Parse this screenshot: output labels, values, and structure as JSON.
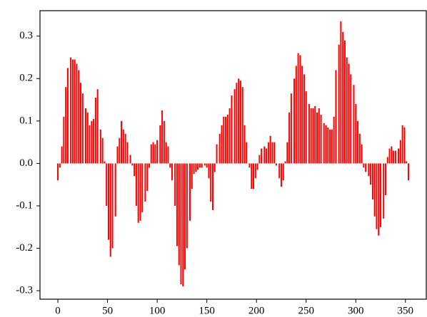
{
  "chart_data": {
    "type": "bar",
    "color": "#ff0000",
    "x": [
      0,
      2,
      4,
      6,
      8,
      10,
      13,
      15,
      17,
      19,
      21,
      23,
      25,
      28,
      30,
      32,
      34,
      36,
      38,
      40,
      43,
      45,
      47,
      49,
      51,
      53,
      55,
      58,
      60,
      62,
      64,
      66,
      68,
      70,
      73,
      75,
      77,
      79,
      81,
      83,
      85,
      88,
      90,
      92,
      94,
      96,
      98,
      100,
      103,
      105,
      107,
      109,
      111,
      113,
      115,
      118,
      120,
      122,
      124,
      126,
      128,
      130,
      133,
      135,
      137,
      139,
      141,
      143,
      145,
      148,
      150,
      152,
      154,
      156,
      158,
      160,
      163,
      165,
      167,
      169,
      171,
      173,
      175,
      178,
      180,
      182,
      184,
      186,
      188,
      190,
      193,
      195,
      197,
      199,
      201,
      203,
      205,
      208,
      210,
      212,
      214,
      216,
      218,
      220,
      223,
      225,
      227,
      229,
      231,
      233,
      235,
      238,
      240,
      242,
      244,
      246,
      248,
      250,
      253,
      255,
      257,
      259,
      261,
      263,
      265,
      268,
      270,
      272,
      274,
      276,
      278,
      280,
      283,
      285,
      287,
      289,
      291,
      293,
      295,
      298,
      300,
      302,
      304,
      306,
      308,
      310,
      313,
      315,
      317,
      319,
      321,
      323,
      325,
      328,
      330,
      332,
      334,
      336,
      338,
      340,
      343,
      345,
      347,
      349,
      351,
      353
    ],
    "values": [
      -0.04,
      -0.01,
      0.04,
      0.11,
      0.18,
      0.225,
      0.25,
      0.245,
      0.245,
      0.235,
      0.22,
      0.19,
      0.165,
      0.13,
      0.12,
      0.09,
      0.1,
      0.105,
      0.155,
      0.175,
      0.08,
      0.06,
      0.005,
      -0.1,
      -0.18,
      -0.22,
      -0.2,
      -0.125,
      0.04,
      0.06,
      0.1,
      0.08,
      0.07,
      0.05,
      0.02,
      -0.005,
      -0.03,
      -0.1,
      -0.14,
      -0.135,
      -0.115,
      -0.09,
      -0.065,
      -0.01,
      0.045,
      0.05,
      0.045,
      0.055,
      0.09,
      0.125,
      0.1,
      0.05,
      0.04,
      -0.01,
      -0.04,
      -0.1,
      -0.195,
      -0.24,
      -0.285,
      -0.29,
      -0.25,
      -0.2,
      -0.135,
      -0.06,
      -0.025,
      -0.02,
      -0.015,
      -0.01,
      -0.01,
      -0.005,
      -0.01,
      -0.035,
      -0.09,
      -0.11,
      -0.02,
      0.045,
      0.07,
      0.09,
      0.11,
      0.11,
      0.115,
      0.13,
      0.16,
      0.175,
      0.19,
      0.2,
      0.195,
      0.18,
      0.09,
      0.05,
      -0.01,
      -0.06,
      -0.06,
      -0.035,
      -0.015,
      0.02,
      0.035,
      0.04,
      0.035,
      0.05,
      0.065,
      0.05,
      0.05,
      -0.005,
      -0.035,
      -0.055,
      -0.04,
      0.005,
      0.05,
      0.12,
      0.165,
      0.2,
      0.23,
      0.26,
      0.255,
      0.23,
      0.21,
      0.17,
      0.14,
      0.13,
      0.13,
      0.135,
      0.12,
      0.13,
      0.115,
      0.095,
      0.09,
      0.085,
      0.08,
      0.08,
      0.11,
      0.22,
      0.28,
      0.335,
      0.31,
      0.29,
      0.25,
      0.235,
      0.21,
      0.185,
      0.14,
      0.1,
      0.07,
      0.045,
      -0.01,
      -0.02,
      -0.03,
      -0.05,
      -0.085,
      -0.125,
      -0.155,
      -0.17,
      -0.15,
      -0.13,
      -0.075,
      0.015,
      0.035,
      0.04,
      0.03,
      0.03,
      0.035,
      0.055,
      0.09,
      0.085,
      0.005,
      -0.04
    ],
    "xlim": [
      -18,
      371
    ],
    "ylim": [
      -0.32,
      0.36
    ],
    "xticks": [
      0,
      50,
      100,
      150,
      200,
      250,
      300,
      350
    ],
    "yticks": [
      -0.3,
      -0.2,
      -0.1,
      {
        "value": 0,
        "label": "0.0"
      },
      0.1,
      0.2,
      0.3
    ]
  }
}
